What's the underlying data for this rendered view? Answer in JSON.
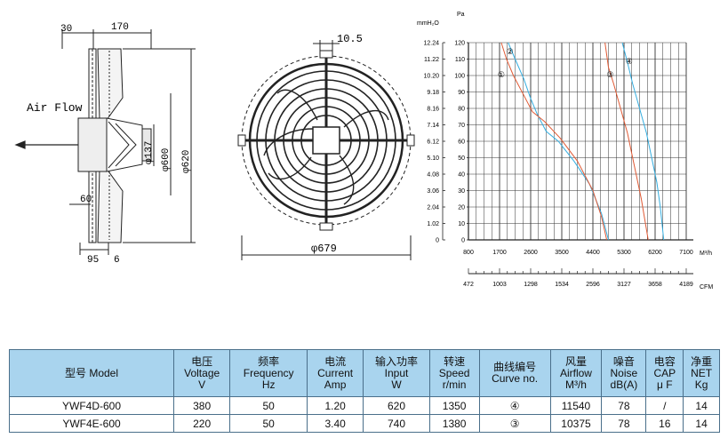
{
  "side_view": {
    "dim_top_left": "30",
    "dim_top": "170",
    "airflow_label": "Air Flow",
    "dim_left_mid": "60",
    "dim_bottom_left": "95",
    "dim_bottom_right": "6",
    "dia_137": "φ137",
    "dia_600": "φ600",
    "dia_620": "φ620"
  },
  "front_view": {
    "dim_top": "10.5",
    "dim_bottom": "φ679"
  },
  "chart_data": {
    "type": "line",
    "left_axis_unit": "mmH₂O",
    "right_axis_unit": "Pa",
    "mmh2o_ticks": [
      "12.24",
      "11.22",
      "10.20",
      "9.18",
      "8.16",
      "7.14",
      "6.12",
      "5.10",
      "4.08",
      "3.06",
      "2.04",
      "1.02",
      "0"
    ],
    "pa_ticks": [
      "120",
      "110",
      "100",
      "90",
      "80",
      "70",
      "60",
      "50",
      "40",
      "30",
      "20",
      "10",
      "0"
    ],
    "x_ticks_m3h": [
      "800",
      "1700",
      "2600",
      "3500",
      "4400",
      "5300",
      "6200",
      "7100"
    ],
    "x_unit_m3h": "M³/h",
    "x_ticks_cfm": [
      "472",
      "1003",
      "1298",
      "1534",
      "2596",
      "3127",
      "3658",
      "4189"
    ],
    "x_unit_cfm": "CFM",
    "xlim": [
      800,
      7100
    ],
    "ylim": [
      0,
      120
    ],
    "grid": true,
    "curve_labels": [
      "①",
      "②",
      "③",
      "④"
    ],
    "series": [
      {
        "name": "①",
        "color": "#35aee0",
        "x": [
          1950,
          2150,
          2400,
          2600,
          2800,
          3050,
          3400,
          3850,
          4300,
          4650,
          4850
        ],
        "y": [
          120,
          110,
          98,
          86,
          76,
          66,
          60,
          48,
          34,
          16,
          0
        ]
      },
      {
        "name": "②",
        "color": "#e05a35",
        "x": [
          1750,
          1900,
          2100,
          2400,
          2650,
          3000,
          3450,
          3950,
          4400,
          4650,
          4800
        ],
        "y": [
          120,
          110,
          100,
          88,
          78,
          72,
          62,
          48,
          30,
          14,
          0
        ]
      },
      {
        "name": "③",
        "color": "#e05a35",
        "x": [
          4750,
          4850,
          5000,
          5200,
          5400,
          5550,
          5650,
          5800,
          6000
        ],
        "y": [
          120,
          105,
          95,
          80,
          65,
          50,
          40,
          25,
          0
        ]
      },
      {
        "name": "④",
        "color": "#35aee0",
        "x": [
          5250,
          5400,
          5550,
          5750,
          5950,
          6100,
          6250,
          6350,
          6450
        ],
        "y": [
          120,
          108,
          95,
          80,
          65,
          50,
          35,
          20,
          0
        ]
      }
    ]
  },
  "table": {
    "headers": [
      [
        "型号 Model"
      ],
      [
        "电压",
        "Voltage",
        "V"
      ],
      [
        "频率",
        "Frequency",
        "Hz"
      ],
      [
        "电流",
        "Current",
        "Amp"
      ],
      [
        "输入功率",
        "Input",
        "W"
      ],
      [
        "转速",
        "Speed",
        "r/min"
      ],
      [
        "曲线编号",
        "Curve no."
      ],
      [
        "风量",
        "Airflow",
        "M³/h"
      ],
      [
        "噪音",
        "Noise",
        "dB(A)"
      ],
      [
        "电容",
        "CAP",
        "μ F"
      ],
      [
        "净重",
        "NET",
        "Kg"
      ]
    ],
    "rows": [
      [
        "YWF4D-600",
        "380",
        "50",
        "1.20",
        "620",
        "1350",
        "④",
        "11540",
        "78",
        "/",
        "14"
      ],
      [
        "YWF4E-600",
        "220",
        "50",
        "3.40",
        "740",
        "1380",
        "③",
        "10375",
        "78",
        "16",
        "14"
      ]
    ]
  }
}
